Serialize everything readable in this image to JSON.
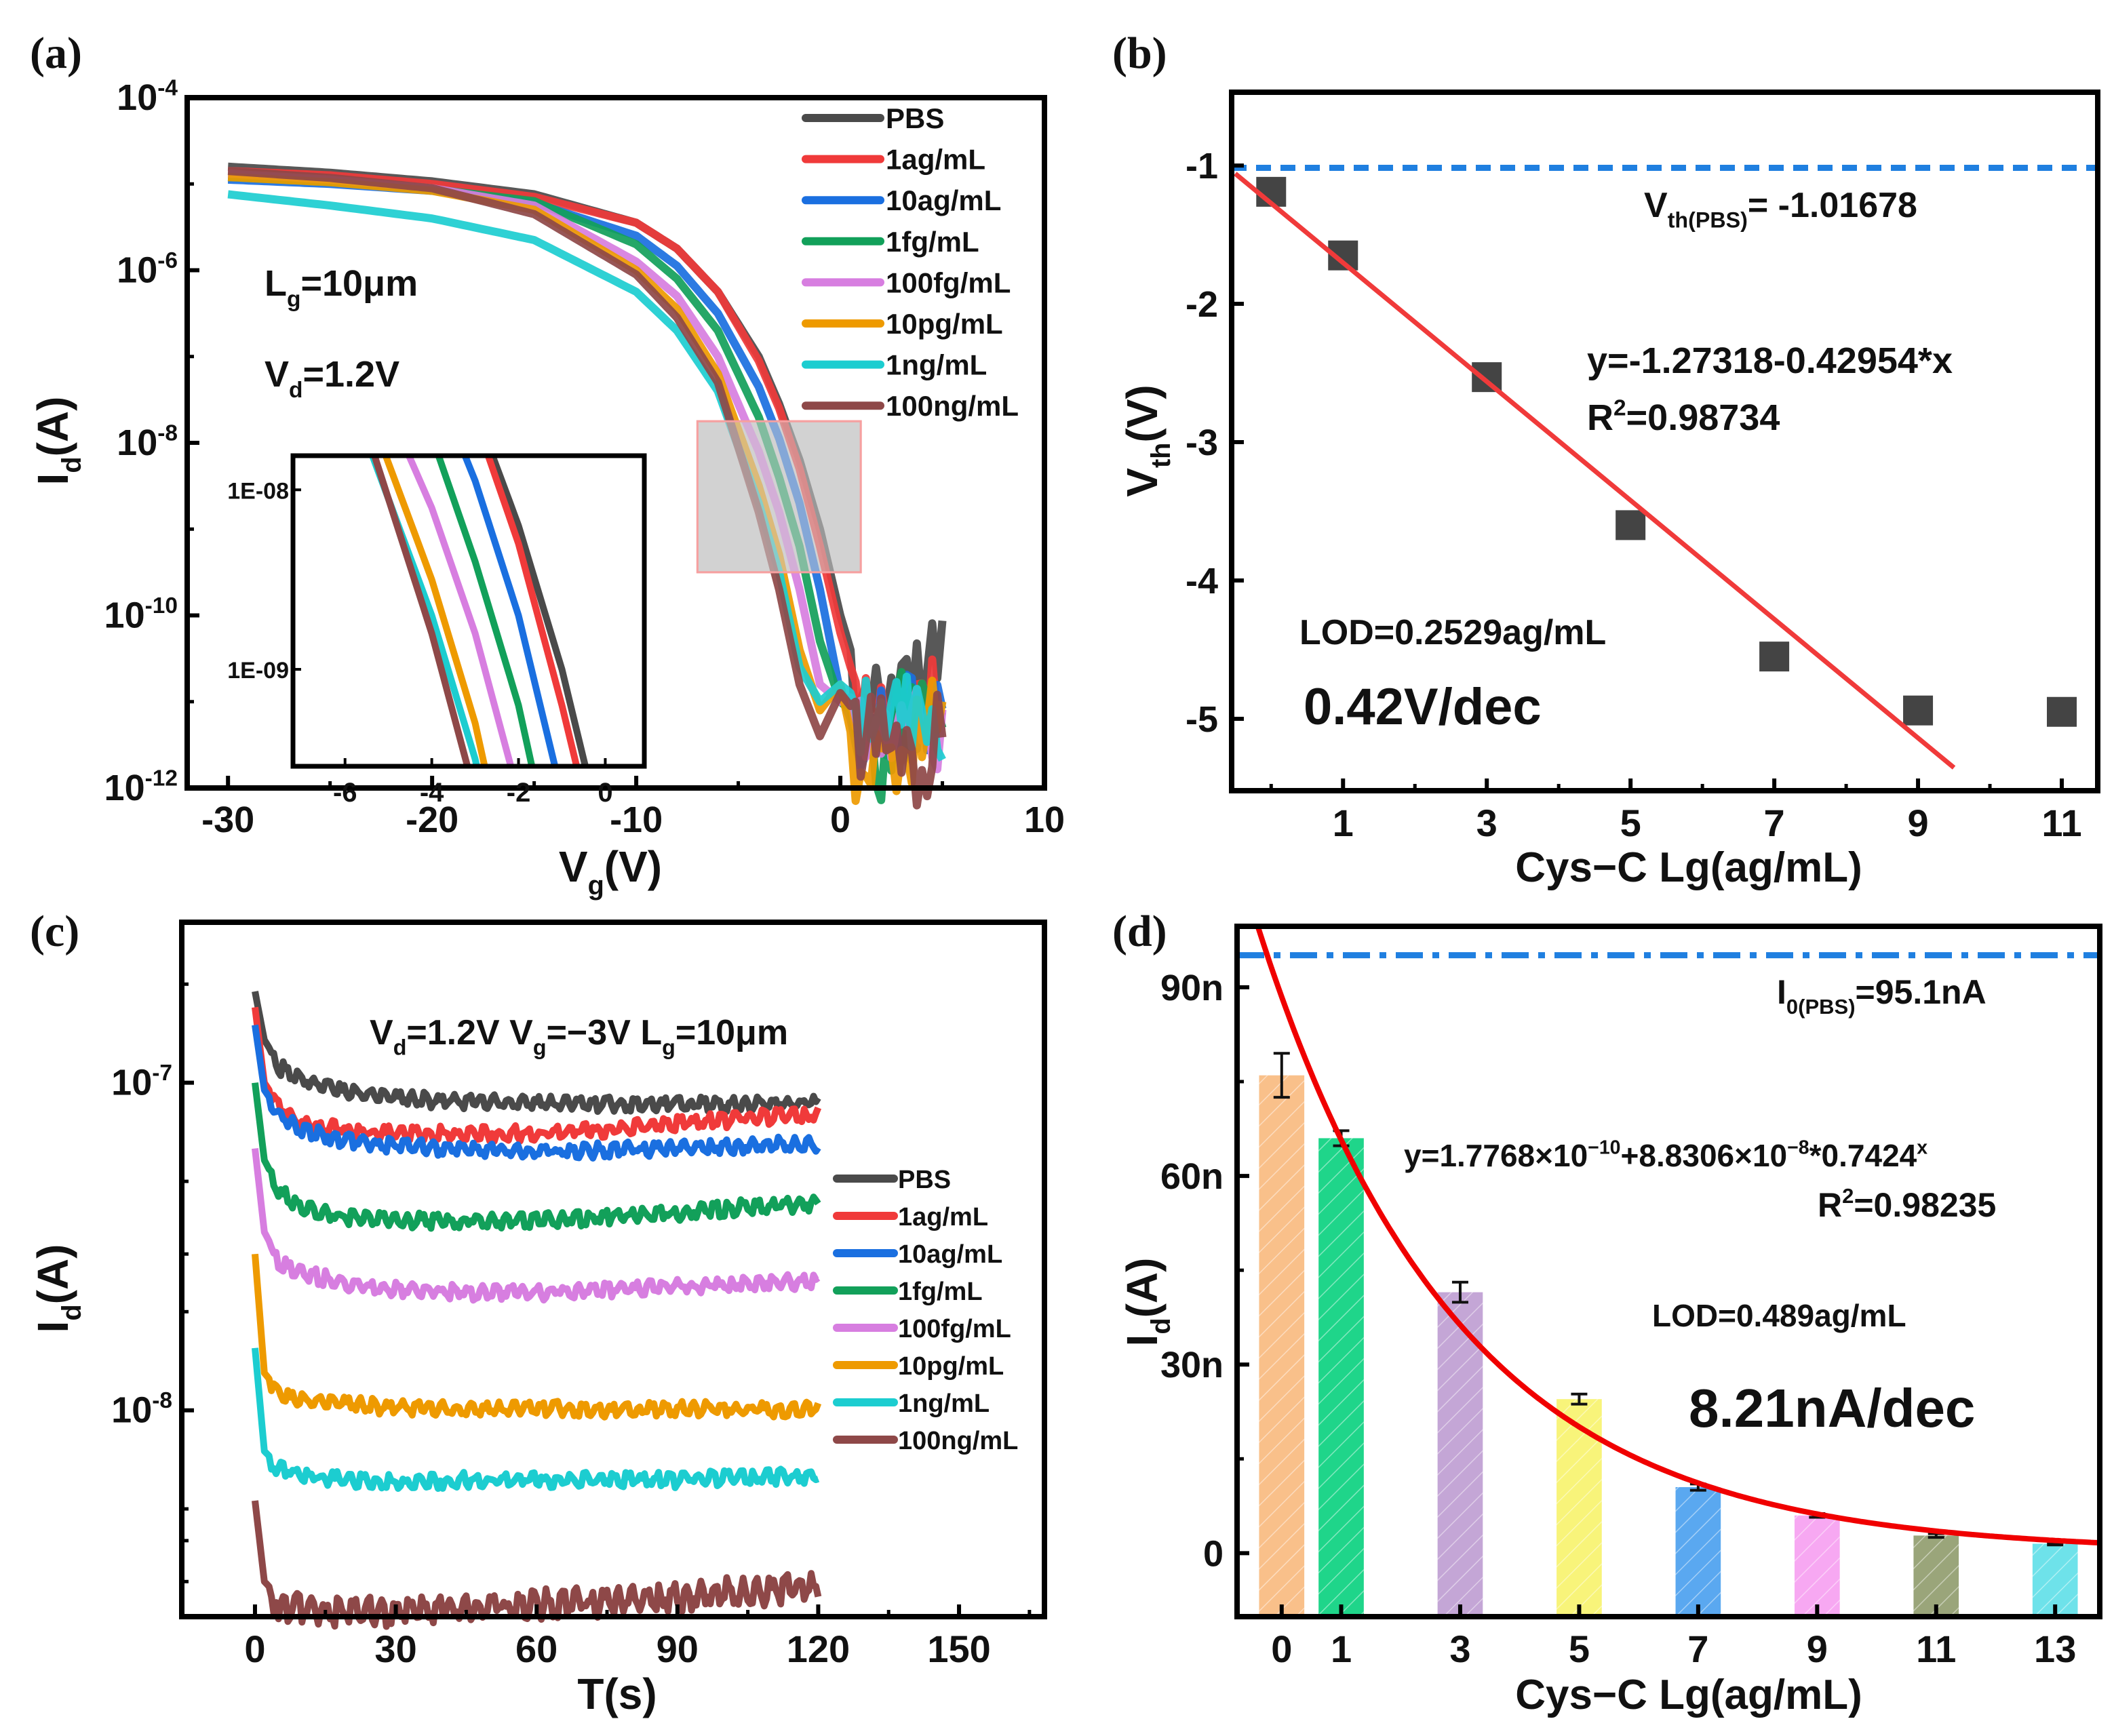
{
  "chart_data": [
    {
      "panel": "(a)",
      "type": "line",
      "xlabel": {
        "main": "V",
        "sub": "g",
        "rest": "(V)"
      },
      "ylabel": {
        "main": "I",
        "sub": "d",
        "rest": "(A)"
      },
      "yscale": "log",
      "xlim": [
        -32,
        10
      ],
      "ylim_log10": [
        -12,
        -4
      ],
      "x_ticks": [
        "-30",
        "-20",
        "-10",
        "0",
        "10"
      ],
      "x_tick_values": [
        -30,
        -20,
        -10,
        0,
        10
      ],
      "y_ticks": [
        {
          "base": "10",
          "exp": "-4",
          "v": -4
        },
        {
          "base": "10",
          "exp": "-6",
          "v": -6
        },
        {
          "base": "10",
          "exp": "-8",
          "v": -8
        },
        {
          "base": "10",
          "exp": "-10",
          "v": -10
        },
        {
          "base": "10",
          "exp": "-12",
          "v": -12
        }
      ],
      "annotations": [
        [
          {
            "t": "L"
          },
          {
            "t": "g",
            "sub": true
          },
          {
            "t": "=10μm"
          }
        ],
        [
          {
            "t": "V"
          },
          {
            "t": "d",
            "sub": true
          },
          {
            "t": "=1.2V"
          }
        ]
      ],
      "legend_position": "top-right",
      "x": [
        -30,
        -25,
        -20,
        -15,
        -10,
        -8,
        -6,
        -4,
        -3,
        -2,
        -1,
        0,
        1,
        2,
        3,
        4,
        5
      ],
      "series": [
        {
          "name": "PBS",
          "color": "#4a4a4a",
          "log10_y": [
            -4.8,
            -4.87,
            -4.97,
            -5.12,
            -5.45,
            -5.75,
            -6.25,
            -7.0,
            -7.55,
            -8.2,
            -9.0,
            -10.0,
            -10.8,
            -10.7,
            -10.6,
            -10.4,
            -10.1
          ]
        },
        {
          "name": "1ag/mL",
          "color": "#f03a3a",
          "log10_y": [
            -4.85,
            -4.9,
            -5.0,
            -5.15,
            -5.45,
            -5.75,
            -6.25,
            -7.05,
            -7.6,
            -8.3,
            -9.2,
            -10.2,
            -11.0,
            -10.8,
            -11.0,
            -10.9,
            -10.6
          ]
        },
        {
          "name": "10ag/mL",
          "color": "#1a6fe0",
          "log10_y": [
            -4.95,
            -5.0,
            -5.08,
            -5.22,
            -5.6,
            -5.95,
            -6.5,
            -7.35,
            -7.95,
            -8.7,
            -9.7,
            -10.9,
            -11.5,
            -11.0,
            -10.8,
            -10.9,
            -10.8
          ]
        },
        {
          "name": "1fg/mL",
          "color": "#12a05a",
          "log10_y": [
            -4.92,
            -4.98,
            -5.06,
            -5.2,
            -5.7,
            -6.1,
            -6.7,
            -7.7,
            -8.4,
            -9.2,
            -10.3,
            -11.0,
            -11.2,
            -11.6,
            -10.9,
            -11.0,
            -10.9
          ]
        },
        {
          "name": "100fg/mL",
          "color": "#d77ee0",
          "log10_y": [
            -4.88,
            -4.95,
            -5.05,
            -5.25,
            -5.9,
            -6.3,
            -7.0,
            -8.1,
            -8.8,
            -9.7,
            -10.8,
            -11.0,
            -10.9,
            -11.1,
            -11.0,
            -11.0,
            -11.1
          ]
        },
        {
          "name": "10pg/mL",
          "color": "#ee9a00",
          "log10_y": [
            -4.92,
            -4.98,
            -5.08,
            -5.3,
            -6.0,
            -6.45,
            -7.2,
            -8.5,
            -9.3,
            -10.4,
            -11.1,
            -10.8,
            -11.9,
            -11.0,
            -11.8,
            -11.0,
            -10.9
          ]
        },
        {
          "name": "1ng/mL",
          "color": "#1ccdd0",
          "log10_y": [
            -5.12,
            -5.25,
            -5.4,
            -5.65,
            -6.25,
            -6.7,
            -7.4,
            -8.7,
            -9.5,
            -10.6,
            -11.0,
            -10.8,
            -11.0,
            -10.9,
            -10.9,
            -11.0,
            -11.2
          ]
        },
        {
          "name": "100ng/mL",
          "color": "#8e4848",
          "log10_y": [
            -4.85,
            -4.93,
            -5.05,
            -5.35,
            -6.05,
            -6.55,
            -7.3,
            -8.8,
            -9.7,
            -10.8,
            -11.4,
            -10.9,
            -11.2,
            -11.0,
            -11.3,
            -11.6,
            -10.9
          ]
        }
      ],
      "zoom_region": {
        "xlim": [
          -7,
          1
        ],
        "ylim_log10": [
          -9.5,
          -7.75
        ]
      },
      "inset": {
        "xlim": [
          -7.2,
          0.9
        ],
        "ylim_log10": [
          -9.54,
          -7.81
        ],
        "x_ticks": [
          "-6",
          "-4",
          "-2",
          "0"
        ],
        "x_tick_values": [
          -6,
          -4,
          -2,
          0
        ],
        "y_ticks": [
          "1E-08",
          "1E-09"
        ],
        "y_tick_values": [
          -8,
          -9
        ]
      }
    },
    {
      "panel": "(b)",
      "type": "scatter",
      "xlabel": "Cys−C Lg(ag/mL)",
      "ylabel": {
        "main": "V",
        "sub": "th",
        "rest": "(V)"
      },
      "xlim": [
        -0.55,
        11.5
      ],
      "ylim": [
        -5.52,
        -0.47
      ],
      "x_ticks": [
        "1",
        "3",
        "5",
        "7",
        "9",
        "11"
      ],
      "x_tick_values": [
        1,
        3,
        5,
        7,
        9,
        11
      ],
      "y_ticks": [
        "-1",
        "-2",
        "-3",
        "-4",
        "-5"
      ],
      "y_tick_values": [
        -1,
        -2,
        -3,
        -4,
        -5
      ],
      "x": [
        0,
        1,
        3,
        5,
        7,
        9,
        11
      ],
      "y": [
        -1.19,
        -1.65,
        -2.53,
        -3.6,
        -4.55,
        -4.94,
        -4.95
      ],
      "marker_color": "#444444",
      "baseline": {
        "value": -1.01678,
        "color": "#1f7fe0",
        "label": [
          {
            "t": "V"
          },
          {
            "t": "th(PBS)",
            "sub": true
          },
          {
            "t": "= -1.01678"
          }
        ]
      },
      "fit": {
        "intercept": -1.27318,
        "slope": -0.42954,
        "x_range": [
          -0.5,
          9.5
        ],
        "color": "#f03a3a"
      },
      "annotations": {
        "equation": "y=-1.27318-0.42954*x",
        "r2": [
          {
            "t": "R"
          },
          {
            "t": "2",
            "sup": true
          },
          {
            "t": "=0.98734"
          }
        ],
        "lod": "LOD=0.2529ag/mL",
        "sensitivity": "0.42V/dec"
      }
    },
    {
      "panel": "(c)",
      "type": "line",
      "xlabel": "T(s)",
      "ylabel": {
        "main": "I",
        "sub": "d",
        "rest": "(A)"
      },
      "yscale": "log",
      "xlim": [
        -15.6,
        168.2
      ],
      "ylim_log10": [
        -8.63,
        -6.51
      ],
      "x_ticks": [
        "0",
        "30",
        "60",
        "90",
        "120",
        "150"
      ],
      "x_tick_values": [
        0,
        30,
        60,
        90,
        120,
        150
      ],
      "y_ticks": [
        {
          "base": "10",
          "exp": "-7",
          "v": -7
        },
        {
          "base": "10",
          "exp": "-8",
          "v": -8
        }
      ],
      "annotation": [
        {
          "t": "V"
        },
        {
          "t": "d",
          "sub": true
        },
        {
          "t": "=1.2V   V"
        },
        {
          "t": "g",
          "sub": true
        },
        {
          "t": "=−3V  L"
        },
        {
          "t": "g",
          "sub": true
        },
        {
          "t": "=10μm"
        }
      ],
      "legend_position": "center-right",
      "x": [
        0,
        2,
        5,
        10,
        20,
        30,
        45,
        60,
        75,
        90,
        105,
        120
      ],
      "series": [
        {
          "name": "PBS",
          "color": "#4a4a4a",
          "y": [
            1.9e-07,
            1.35e-07,
            1.15e-07,
            1.05e-07,
            9.6e-08,
            9.2e-08,
            9e-08,
            8.9e-08,
            8.8e-08,
            8.9e-08,
            8.8e-08,
            8.9e-08
          ]
        },
        {
          "name": "1ag/mL",
          "color": "#f03a3a",
          "y": [
            1.7e-07,
            1e-07,
            8.6e-08,
            7.8e-08,
            7.3e-08,
            7.2e-08,
            7.2e-08,
            7.2e-08,
            7.4e-08,
            7.7e-08,
            8e-08,
            8.2e-08
          ]
        },
        {
          "name": "10ag/mL",
          "color": "#1a6fe0",
          "y": [
            1.5e-07,
            9.5e-08,
            8.2e-08,
            7.4e-08,
            6.8e-08,
            6.6e-08,
            6.4e-08,
            6.3e-08,
            6.4e-08,
            6.5e-08,
            6.6e-08,
            6.7e-08
          ]
        },
        {
          "name": "1fg/mL",
          "color": "#12a05a",
          "y": [
            1e-07,
            5.8e-08,
            4.8e-08,
            4.3e-08,
            4e-08,
            3.9e-08,
            3.9e-08,
            3.9e-08,
            4e-08,
            4.1e-08,
            4.3e-08,
            4.4e-08
          ]
        },
        {
          "name": "100fg/mL",
          "color": "#d77ee0",
          "y": [
            6.3e-08,
            3.5e-08,
            2.9e-08,
            2.7e-08,
            2.5e-08,
            2.4e-08,
            2.35e-08,
            2.35e-08,
            2.4e-08,
            2.45e-08,
            2.5e-08,
            2.55e-08
          ]
        },
        {
          "name": "10pg/mL",
          "color": "#ee9a00",
          "y": [
            3e-08,
            1.3e-08,
            1.15e-08,
            1.1e-08,
            1.07e-08,
            1.05e-08,
            1.03e-08,
            1.04e-08,
            1.03e-08,
            1.04e-08,
            1.03e-08,
            1.04e-08
          ]
        },
        {
          "name": "1ng/mL",
          "color": "#1ccdd0",
          "y": [
            1.55e-08,
            7.5e-09,
            6.8e-09,
            6.5e-09,
            6.3e-09,
            6.2e-09,
            6.3e-09,
            6.3e-09,
            6.3e-09,
            6.3e-09,
            6.4e-09,
            6.5e-09
          ]
        },
        {
          "name": "100ng/mL",
          "color": "#8e4848",
          "y": [
            5.3e-09,
            3e-09,
            2.7e-09,
            2.6e-09,
            2.55e-09,
            2.55e-09,
            2.6e-09,
            2.7e-09,
            2.75e-09,
            2.85e-09,
            2.95e-09,
            3.05e-09
          ]
        }
      ]
    },
    {
      "panel": "(d)",
      "type": "bar",
      "xlabel": "Cys−C Lg(ag/mL)",
      "ylabel": {
        "main": "I",
        "sub": "d",
        "rest": "(A)"
      },
      "xlim": [
        -0.75,
        13.75
      ],
      "ylim": [
        -10.1,
        99.7
      ],
      "y_unit": "nA",
      "x_ticks": [
        "0",
        "1",
        "3",
        "5",
        "7",
        "9",
        "11",
        "13"
      ],
      "x_tick_values": [
        0,
        1,
        3,
        5,
        7,
        9,
        11,
        13
      ],
      "y_ticks": [
        "0",
        "30n",
        "60n",
        "90n"
      ],
      "y_tick_values": [
        0,
        30,
        60,
        90
      ],
      "categories": [
        0,
        1,
        3,
        5,
        7,
        9,
        11,
        13
      ],
      "values": [
        76,
        66,
        41.5,
        24.5,
        10.5,
        6,
        2.8,
        1.5
      ],
      "errors": [
        3.5,
        1.2,
        1.6,
        0.8,
        0.5,
        0.3,
        0.3,
        0.2
      ],
      "bar_colors": [
        "#f9c08a",
        "#1fd58a",
        "#c4a6d6",
        "#f8f47a",
        "#5aa8f0",
        "#f7a8f2",
        "#9aa57a",
        "#6ee2ea"
      ],
      "baseline": {
        "value": 95.1,
        "color": "#1f7fe0",
        "label": [
          {
            "t": "I"
          },
          {
            "t": "0(PBS)",
            "sub": true
          },
          {
            "t": "=95.1nA"
          }
        ]
      },
      "fit": {
        "a": 0.17768,
        "b": 88.306,
        "base": 0.7424,
        "x_range": [
          -0.4,
          13.8
        ],
        "color": "#f00000"
      },
      "annotations": {
        "equation": [
          {
            "t": "y=1.7768×10"
          },
          {
            "t": "−10",
            "sup": true
          },
          {
            "t": "+8.8306×10"
          },
          {
            "t": "−8",
            "sup": true
          },
          {
            "t": "*0.7424"
          },
          {
            "t": "x",
            "sup": true
          }
        ],
        "r2": [
          {
            "t": "R"
          },
          {
            "t": "2",
            "sup": true
          },
          {
            "t": "=0.98235"
          }
        ],
        "lod": "LOD=0.489ag/mL",
        "sensitivity": "8.21nA/dec"
      }
    }
  ]
}
